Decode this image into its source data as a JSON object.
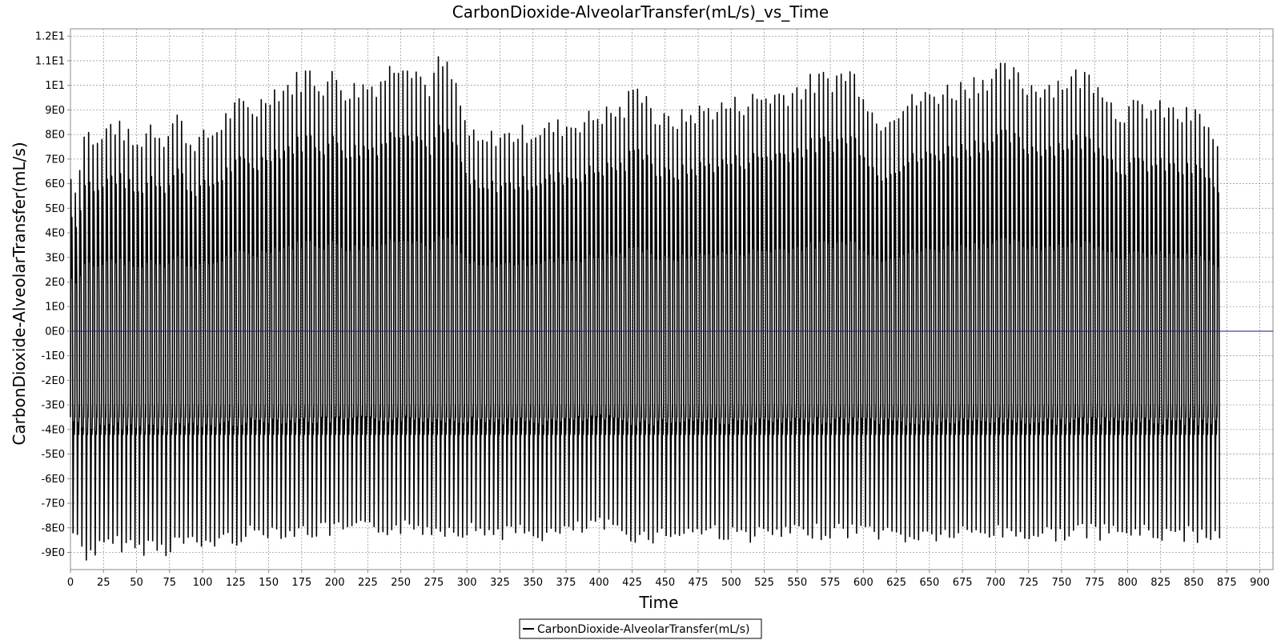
{
  "chart_data": {
    "type": "line",
    "title": "CarbonDioxide-AlveolarTransfer(mL/s)_vs_Time",
    "xlabel": "Time",
    "ylabel": "CarbonDioxide-AlveolarTransfer(mL/s)",
    "xlim": [
      0,
      910
    ],
    "ylim": [
      -9.7,
      12.3
    ],
    "x_ticks": [
      0,
      25,
      50,
      75,
      100,
      125,
      150,
      175,
      200,
      225,
      250,
      275,
      300,
      325,
      350,
      375,
      400,
      425,
      450,
      475,
      500,
      525,
      550,
      575,
      600,
      625,
      650,
      675,
      700,
      725,
      750,
      775,
      800,
      825,
      850,
      875,
      900
    ],
    "y_ticks": [
      {
        "value": 12,
        "label": "1.2E1"
      },
      {
        "value": 11,
        "label": "1.1E1"
      },
      {
        "value": 10,
        "label": "1E1"
      },
      {
        "value": 9,
        "label": "9E0"
      },
      {
        "value": 8,
        "label": "8E0"
      },
      {
        "value": 7,
        "label": "7E0"
      },
      {
        "value": 6,
        "label": "6E0"
      },
      {
        "value": 5,
        "label": "5E0"
      },
      {
        "value": 4,
        "label": "4E0"
      },
      {
        "value": 3,
        "label": "3E0"
      },
      {
        "value": 2,
        "label": "2E0"
      },
      {
        "value": 1,
        "label": "1E0"
      },
      {
        "value": 0,
        "label": "0E0"
      },
      {
        "value": -1,
        "label": "-1E0"
      },
      {
        "value": -2,
        "label": "-2E0"
      },
      {
        "value": -3,
        "label": "-3E0"
      },
      {
        "value": -4,
        "label": "-4E0"
      },
      {
        "value": -5,
        "label": "-5E0"
      },
      {
        "value": -6,
        "label": "-6E0"
      },
      {
        "value": -7,
        "label": "-7E0"
      },
      {
        "value": -8,
        "label": "-8E0"
      },
      {
        "value": -9,
        "label": "-9E0"
      }
    ],
    "grid": true,
    "legend_position": "bottom-center",
    "series": [
      {
        "name": "CarbonDioxide-AlveolarTransfer(mL/s)",
        "color": "#000000",
        "x_range": [
          0,
          870
        ],
        "breath_period_s": 3.35,
        "peak_envelope": {
          "x": [
            0,
            5,
            10,
            20,
            30,
            40,
            50,
            60,
            70,
            80,
            90,
            100,
            110,
            120,
            130,
            140,
            150,
            160,
            170,
            180,
            190,
            200,
            210,
            220,
            230,
            240,
            250,
            260,
            270,
            280,
            290,
            300,
            310,
            320,
            330,
            340,
            350,
            360,
            370,
            380,
            390,
            400,
            410,
            420,
            425,
            430,
            435,
            440,
            450,
            460,
            470,
            480,
            490,
            500,
            510,
            520,
            530,
            540,
            550,
            560,
            570,
            580,
            590,
            600,
            610,
            620,
            630,
            640,
            650,
            660,
            670,
            680,
            690,
            700,
            710,
            720,
            730,
            740,
            750,
            760,
            770,
            780,
            790,
            800,
            810,
            820,
            830,
            840,
            850,
            860,
            870
          ],
          "y": [
            6.5,
            6.0,
            8.7,
            7.9,
            8.8,
            8.5,
            7.8,
            8.8,
            8.2,
            9.2,
            8.0,
            8.2,
            8.5,
            9.3,
            9.6,
            9.4,
            10.2,
            10.3,
            10.6,
            11.0,
            10.5,
            10.8,
            10.2,
            10.4,
            10.5,
            11.0,
            11.7,
            11.3,
            10.3,
            11.5,
            10.6,
            8.5,
            7.9,
            8.3,
            8.3,
            8.4,
            8.5,
            8.6,
            8.7,
            8.8,
            9.0,
            9.2,
            9.3,
            9.4,
            10.5,
            9.9,
            10.6,
            9.1,
            8.9,
            9.0,
            9.2,
            9.4,
            9.5,
            9.6,
            9.7,
            9.9,
            10.0,
            10.1,
            10.3,
            10.5,
            10.7,
            10.8,
            11.0,
            10.3,
            8.8,
            9.3,
            9.6,
            9.8,
            10.0,
            10.2,
            10.3,
            10.5,
            10.8,
            10.9,
            11.0,
            10.5,
            10.4,
            10.5,
            10.6,
            10.8,
            10.8,
            10.6,
            9.3,
            9.4,
            9.5,
            9.4,
            9.4,
            9.1,
            9.2,
            8.8,
            7.3
          ]
        },
        "trough_envelope": {
          "x": [
            0,
            10,
            20,
            30,
            40,
            50,
            60,
            70,
            80,
            90,
            100,
            110,
            120,
            130,
            140,
            150,
            170,
            200,
            250,
            300,
            330,
            360,
            380,
            400,
            430,
            460,
            480,
            500,
            530,
            560,
            600,
            630,
            660,
            700,
            730,
            760,
            800,
            830,
            850,
            870
          ],
          "y": [
            -8.5,
            -9.4,
            -9.2,
            -9.0,
            -9.0,
            -9.2,
            -9.0,
            -9.2,
            -8.8,
            -9.0,
            -9.0,
            -8.8,
            -8.8,
            -8.6,
            -8.5,
            -8.4,
            -8.5,
            -8.4,
            -8.3,
            -8.4,
            -8.5,
            -8.6,
            -8.4,
            -8.2,
            -8.7,
            -8.5,
            -8.4,
            -8.6,
            -8.6,
            -8.5,
            -8.4,
            -8.7,
            -8.6,
            -8.5,
            -8.6,
            -8.5,
            -8.5,
            -8.6,
            -8.6,
            -8.6
          ]
        }
      }
    ],
    "zero_line_color": "#1a1a6e"
  }
}
